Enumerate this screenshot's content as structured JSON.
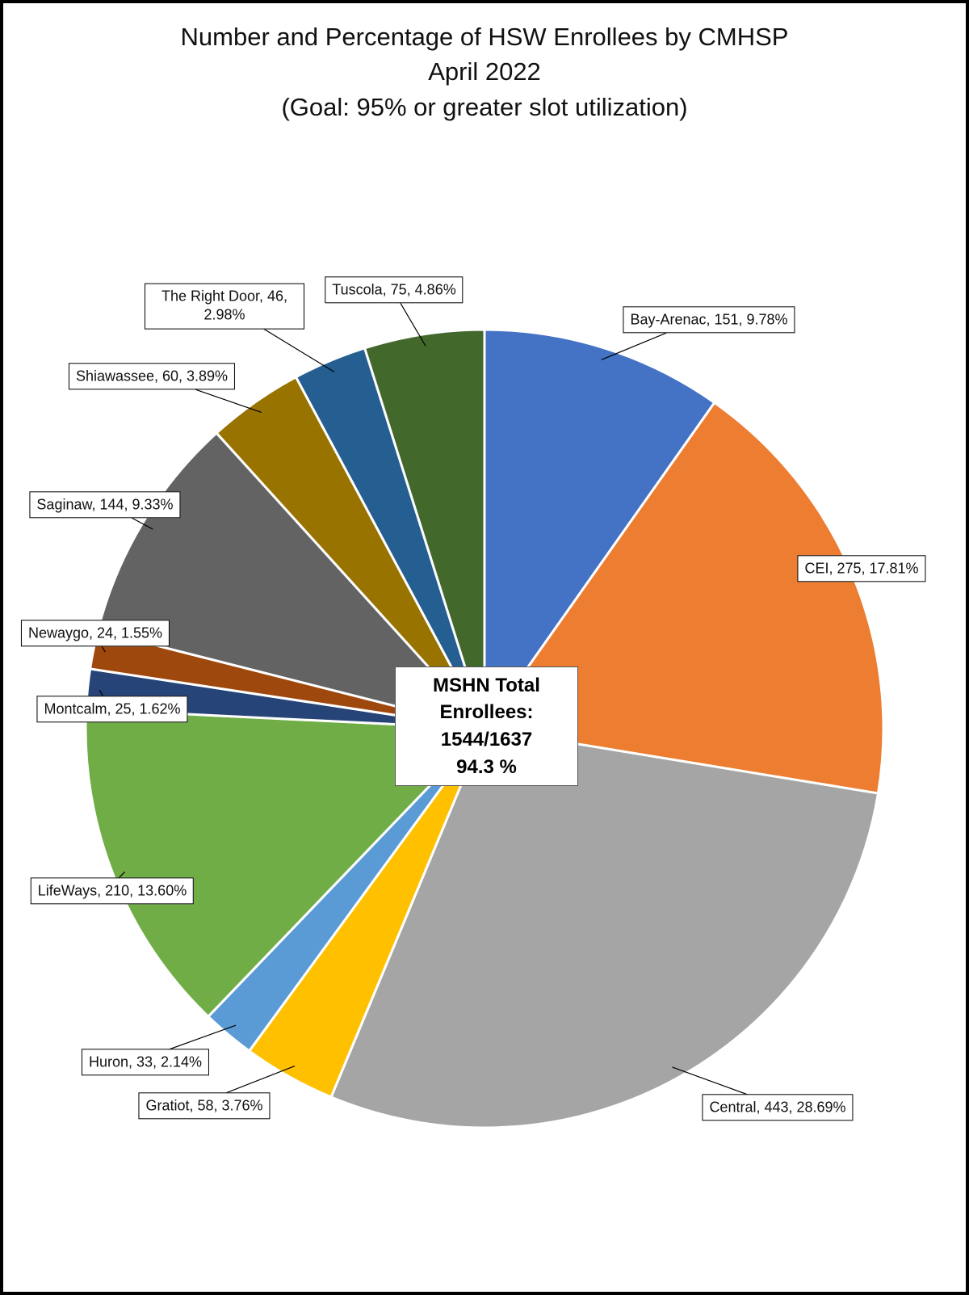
{
  "chart_data": {
    "type": "pie",
    "title": "Number and Percentage of HSW Enrollees by CMHSP",
    "subtitle": "April 2022",
    "note": "(Goal: 95% or greater slot utilization)",
    "values": [
      151,
      275,
      443,
      58,
      33,
      210,
      25,
      24,
      144,
      60,
      46,
      75
    ],
    "value_labels": [
      "Bay-Arenac, 151, 9.78%",
      "CEI, 275, 17.81%",
      "Central, 443, 28.69%",
      "Gratiot, 58, 3.76%",
      "Huron, 33, 2.14%",
      "LifeWays, 210, 13.60%",
      "Montcalm, 25, 1.62%",
      "Newaygo, 24, 1.55%",
      "Saginaw, 144, 9.33%",
      "Shiawassee, 60, 3.89%",
      "The Right Door, 46, 2.98%",
      "Tuscola, 75, 4.86%"
    ],
    "colors": [
      "#4472c4",
      "#ed7d31",
      "#a5a5a5",
      "#ffc000",
      "#5b9bd5",
      "#70ad47",
      "#264478",
      "#9e480e",
      "#636363",
      "#997300",
      "#255e91",
      "#43682b"
    ],
    "annotation": [
      "MSHN Total Enrollees:",
      "1544/1637",
      "94.3 %"
    ]
  }
}
